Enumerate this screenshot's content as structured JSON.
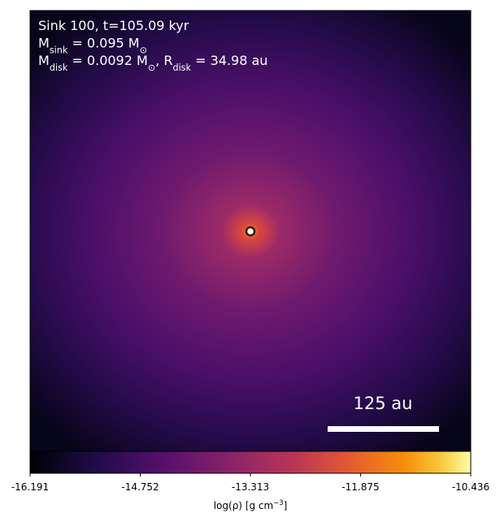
{
  "chart_data": {
    "type": "density-map",
    "annotations": [
      [
        {
          "t": "Sink 100, t=105.09 kyr"
        }
      ],
      [
        {
          "t": "M"
        },
        {
          "sub": "sink"
        },
        {
          "t": " = 0.095 M"
        },
        {
          "sub": "⊙"
        }
      ],
      [
        {
          "t": "M"
        },
        {
          "sub": "disk"
        },
        {
          "t": " = 0.0092 M"
        },
        {
          "sub": "⊙"
        },
        {
          "t": ", R"
        },
        {
          "sub": "disk"
        },
        {
          "t": " = 34.98 au"
        }
      ]
    ],
    "scale_bar": {
      "label": "125 au"
    },
    "colormap": "inferno",
    "colorbar": {
      "label": [
        {
          "t": "log(ρ) [g cm"
        },
        {
          "sup": "−3"
        },
        {
          "t": "]"
        }
      ],
      "clim": [
        -16.191,
        -10.436
      ],
      "ticks": [
        -16.191,
        -14.752,
        -13.313,
        -11.875,
        -10.436
      ]
    }
  }
}
